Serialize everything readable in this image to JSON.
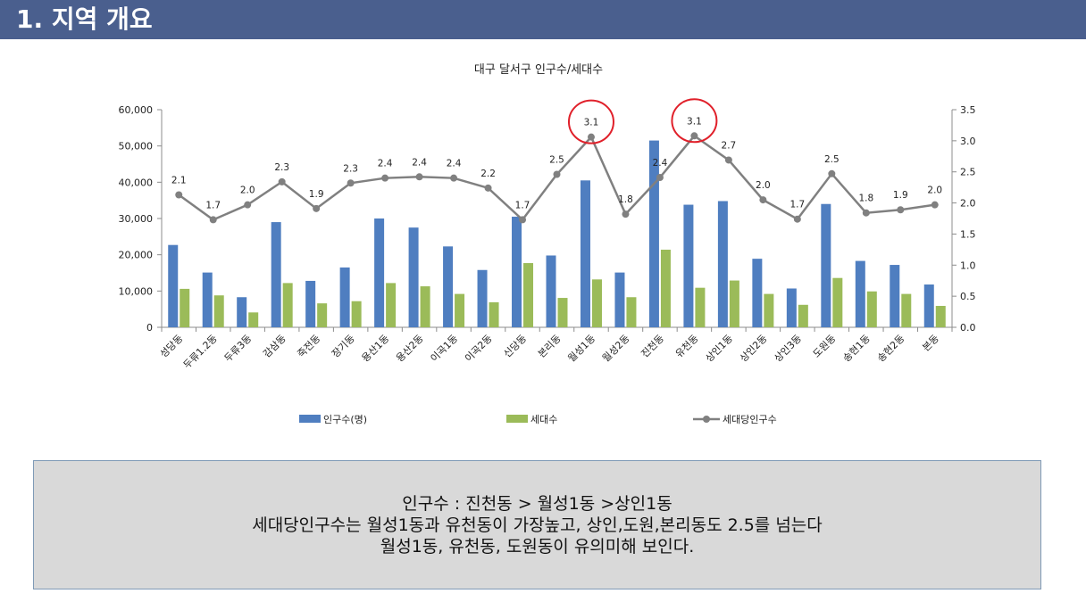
{
  "header": {
    "title": "1. 지역 개요"
  },
  "colors": {
    "header_bg": "#4a5f8e",
    "population_bar": "#4f7ec0",
    "household_bar": "#9bbb59",
    "ratio_line": "#808080",
    "highlight_circle": "#e0202a",
    "note_bg": "#d9d9d9",
    "note_border": "#7f9ab6"
  },
  "chart_data": {
    "type": "bar",
    "title": "대구 달서구 인구수/세대수",
    "categories": [
      "성당동",
      "두류1.2동",
      "두류3동",
      "감삼동",
      "죽전동",
      "장기동",
      "용산1동",
      "용산2동",
      "이곡1동",
      "이곡2동",
      "신당동",
      "본리동",
      "월성1동",
      "월성2동",
      "진천동",
      "유천동",
      "상인1동",
      "상인2동",
      "상인3동",
      "도원동",
      "송현1동",
      "송현2동",
      "본동"
    ],
    "series": [
      {
        "name": "인구수(명)",
        "type": "bar",
        "axis": "left",
        "values": [
          22700,
          15100,
          8300,
          29000,
          12800,
          16500,
          30000,
          27500,
          22300,
          15800,
          30500,
          19800,
          40500,
          15100,
          51500,
          33800,
          34800,
          18900,
          10700,
          34000,
          18300,
          17200,
          11800
        ]
      },
      {
        "name": "세대수",
        "type": "bar",
        "axis": "left",
        "values": [
          10600,
          8800,
          4100,
          12200,
          6600,
          7200,
          12200,
          11300,
          9200,
          6900,
          17700,
          8100,
          13200,
          8300,
          21400,
          10900,
          12900,
          9200,
          6200,
          13600,
          9900,
          9200,
          5900
        ]
      },
      {
        "name": "세대당인구수",
        "type": "line",
        "axis": "right",
        "values": [
          2.13,
          1.73,
          1.97,
          2.34,
          1.91,
          2.32,
          2.4,
          2.42,
          2.4,
          2.24,
          1.73,
          2.46,
          3.06,
          1.82,
          2.41,
          3.08,
          2.69,
          2.05,
          1.74,
          2.47,
          1.84,
          1.89,
          1.97
        ],
        "labels": [
          "2.1",
          "1.7",
          "2.0",
          "2.3",
          "1.9",
          "2.3",
          "2.4",
          "2.4",
          "2.4",
          "2.2",
          "1.7",
          "2.5",
          "3.1",
          "1.8",
          "2.4",
          "3.1",
          "2.7",
          "2.0",
          "1.7",
          "2.5",
          "1.8",
          "1.9",
          "2.0"
        ]
      }
    ],
    "left_axis": {
      "ylim": [
        0,
        60000
      ],
      "ticks": [
        "0",
        "10,000",
        "20,000",
        "30,000",
        "40,000",
        "50,000",
        "60,000"
      ]
    },
    "right_axis": {
      "ylim": [
        0,
        3.5
      ],
      "ticks": [
        "0.0",
        "0.5",
        "1.0",
        "1.5",
        "2.0",
        "2.5",
        "3.0",
        "3.5"
      ]
    },
    "highlighted": [
      "월성1동",
      "유천동"
    ],
    "grid": false,
    "legend": "bottom"
  },
  "note": {
    "lines": [
      "인구수 : 진천동 > 월성1동 >상인1동",
      "세대당인구수는 월성1동과 유천동이 가장높고, 상인,도원,본리동도 2.5를 넘는다",
      "월성1동, 유천동, 도원동이 유의미해 보인다."
    ]
  }
}
